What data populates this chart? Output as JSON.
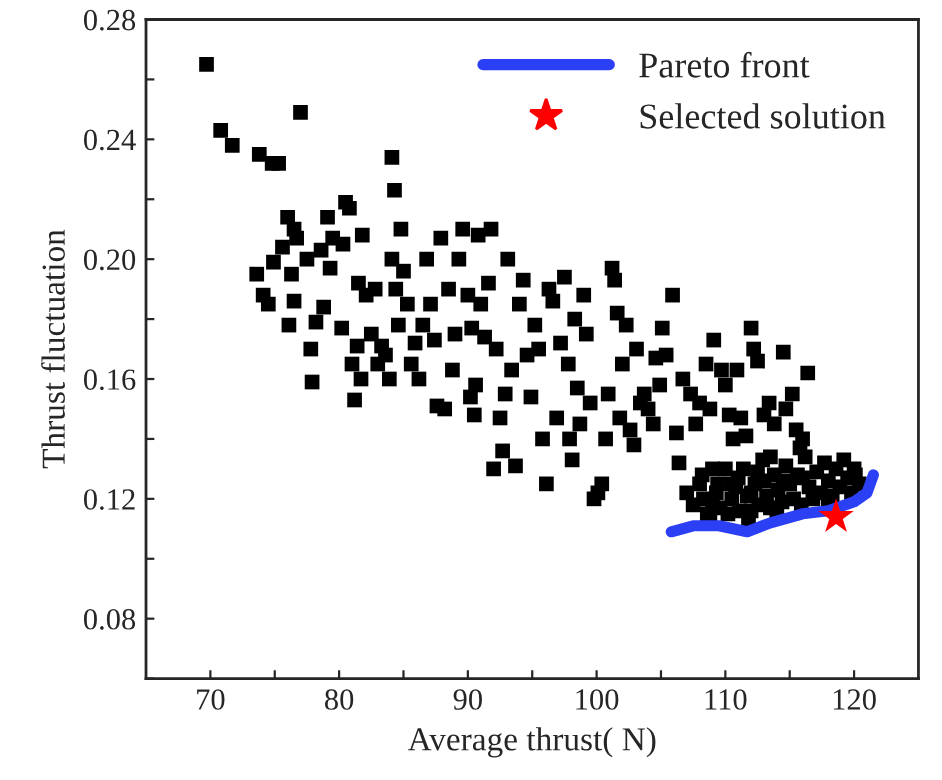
{
  "chart_data": {
    "type": "scatter",
    "xlabel": "Average thrust( N)",
    "ylabel": "Thrust fluctuation",
    "xlim": [
      65,
      125
    ],
    "ylim": [
      0.06,
      0.28
    ],
    "xticks": [
      70,
      {
        "value": 75,
        "label": null
      },
      80,
      {
        "value": 85,
        "label": null
      },
      90,
      {
        "value": 95,
        "label": null
      },
      100,
      {
        "value": 105,
        "label": null
      },
      110,
      {
        "value": 115,
        "label": null
      },
      120
    ],
    "yticks": [
      {
        "value": 0.06,
        "label": null
      },
      {
        "value": 0.08,
        "label": "0.08"
      },
      {
        "value": 0.1,
        "label": null
      },
      {
        "value": 0.12,
        "label": "0.12"
      },
      {
        "value": 0.14,
        "label": null
      },
      {
        "value": 0.16,
        "label": "0.16"
      },
      {
        "value": 0.18,
        "label": null
      },
      {
        "value": 0.2,
        "label": "0.20"
      },
      {
        "value": 0.22,
        "label": null
      },
      {
        "value": 0.24,
        "label": "0.24"
      },
      {
        "value": 0.26,
        "label": null
      },
      {
        "value": 0.28,
        "label": "0.28"
      }
    ],
    "grid": false,
    "legend": "top right",
    "series": [
      {
        "marker": "square",
        "color": "#000000",
        "x": [
          69.7,
          70.8,
          71.7,
          73.8,
          74.8,
          75.3,
          77,
          84.1,
          84.3,
          73.6,
          74.1,
          74.5,
          74.9,
          75.6,
          76,
          76.3,
          76.5,
          76.7,
          76.1,
          76.5,
          77.5,
          77.8,
          77.9,
          78.2,
          78.6,
          78.8,
          79.1,
          79.3,
          79.5,
          80.3,
          80.2,
          80.5,
          80.8,
          81,
          81.2,
          81.4,
          81.7,
          81.5,
          81.8,
          82.1,
          82.5,
          82.8,
          83,
          83.3,
          83.6,
          83.9,
          84.1,
          84.4,
          84.6,
          84.8,
          85,
          85.3,
          85.6,
          85.9,
          86.2,
          86.5,
          86.8,
          87.1,
          87.4,
          87.6,
          87.9,
          88.2,
          88.5,
          88.8,
          89,
          89.3,
          89.6,
          90,
          90.3,
          90.2,
          90.5,
          90.6,
          90.8,
          91,
          91.3,
          91.6,
          91.8,
          92,
          92.2,
          92.5,
          92.7,
          92.9,
          93.1,
          93.4,
          93.7,
          94,
          94.3,
          94.6,
          94.9,
          95.2,
          95.5,
          95.8,
          96.1,
          96.3,
          96.6,
          96.9,
          97.2,
          97.5,
          97.8,
          97.9,
          98.1,
          98.3,
          98.5,
          98.7,
          99,
          99.2,
          99.5,
          99.8,
          100.1,
          100.4,
          100.7,
          100.9,
          101.2,
          101.4,
          101.6,
          101.8,
          102,
          102.3,
          102.6,
          102.9,
          103.1,
          103.4,
          103.7,
          104,
          104.4,
          104.6,
          104.9,
          105.1,
          105.4,
          105.9,
          106.2,
          106.4,
          106.7,
          107,
          107.3,
          107.7,
          108,
          108.2,
          108.5,
          108.8,
          109.1,
          109.4,
          109.7,
          110,
          110.3,
          110.6,
          110.9,
          111.2,
          111.6,
          112,
          112.2,
          112.5,
          113,
          113.4,
          113.8,
          114.5,
          114.7,
          115.2,
          115.5,
          116,
          116.4,
          115.8,
          107.5,
          108,
          108.3,
          108.6,
          109,
          109.3,
          109.6,
          110.2,
          110.5,
          110.8,
          111.1,
          111.4,
          111.7,
          112,
          112.3,
          112.6,
          112.9,
          113.2,
          113.5,
          113.8,
          114.1,
          114.4,
          114.7,
          115,
          115.3,
          115.6,
          115.9,
          116.2,
          116.5,
          116.8,
          117.1,
          117.4,
          117.7,
          118,
          118.3,
          118.6,
          118.9,
          119.2,
          119.5,
          119.8,
          120.1,
          120.4,
          110,
          111,
          112.5,
          113.5,
          114,
          120,
          112,
          113,
          114.5,
          116,
          118,
          110.5,
          109,
          108.8,
          111.8
        ],
        "values": [
          0.265,
          0.243,
          0.238,
          0.235,
          0.232,
          0.232,
          0.249,
          0.234,
          0.223,
          0.195,
          0.188,
          0.185,
          0.199,
          0.204,
          0.214,
          0.195,
          0.21,
          0.207,
          0.178,
          0.186,
          0.2,
          0.17,
          0.159,
          0.179,
          0.203,
          0.184,
          0.214,
          0.197,
          0.207,
          0.205,
          0.177,
          0.219,
          0.217,
          0.165,
          0.153,
          0.171,
          0.16,
          0.192,
          0.208,
          0.188,
          0.175,
          0.19,
          0.165,
          0.171,
          0.168,
          0.16,
          0.2,
          0.19,
          0.178,
          0.21,
          0.196,
          0.185,
          0.165,
          0.172,
          0.16,
          0.178,
          0.2,
          0.185,
          0.173,
          0.151,
          0.207,
          0.15,
          0.19,
          0.163,
          0.175,
          0.2,
          0.21,
          0.188,
          0.177,
          0.154,
          0.148,
          0.158,
          0.208,
          0.185,
          0.174,
          0.192,
          0.21,
          0.13,
          0.17,
          0.147,
          0.136,
          0.155,
          0.2,
          0.163,
          0.131,
          0.185,
          0.193,
          0.168,
          0.154,
          0.178,
          0.17,
          0.14,
          0.125,
          0.19,
          0.186,
          0.147,
          0.172,
          0.194,
          0.165,
          0.14,
          0.133,
          0.18,
          0.157,
          0.145,
          0.188,
          0.175,
          0.152,
          0.12,
          0.122,
          0.125,
          0.14,
          0.155,
          0.197,
          0.193,
          0.182,
          0.147,
          0.165,
          0.178,
          0.143,
          0.138,
          0.17,
          0.152,
          0.155,
          0.15,
          0.145,
          0.167,
          0.158,
          0.177,
          0.168,
          0.188,
          0.142,
          0.132,
          0.16,
          0.122,
          0.155,
          0.145,
          0.152,
          0.128,
          0.165,
          0.15,
          0.173,
          0.125,
          0.163,
          0.158,
          0.148,
          0.14,
          0.163,
          0.147,
          0.141,
          0.177,
          0.17,
          0.166,
          0.148,
          0.152,
          0.145,
          0.169,
          0.15,
          0.155,
          0.143,
          0.14,
          0.162,
          0.137,
          0.118,
          0.125,
          0.12,
          0.115,
          0.118,
          0.122,
          0.117,
          0.115,
          0.12,
          0.124,
          0.116,
          0.13,
          0.121,
          0.116,
          0.125,
          0.118,
          0.133,
          0.121,
          0.117,
          0.128,
          0.123,
          0.119,
          0.131,
          0.125,
          0.12,
          0.128,
          0.118,
          0.134,
          0.124,
          0.12,
          0.129,
          0.122,
          0.132,
          0.126,
          0.121,
          0.13,
          0.124,
          0.133,
          0.127,
          0.122,
          0.128,
          0.125,
          0.13,
          0.127,
          0.129,
          0.134,
          0.115,
          0.13,
          0.122,
          0.126,
          0.126,
          0.127,
          0.119,
          0.125,
          0.13,
          0.113,
          0.112
        ]
      },
      {
        "type": "line",
        "name": "Pareto front",
        "color": "#2b3ff5",
        "line_style": "solid",
        "marker": "none",
        "x": [
          105.8,
          107.5,
          109.5,
          111.7,
          113.5,
          116,
          118,
          120,
          121,
          121.5
        ],
        "values": [
          0.109,
          0.111,
          0.111,
          0.109,
          0.112,
          0.115,
          0.116,
          0.119,
          0.122,
          0.128
        ]
      },
      {
        "type": "scatter",
        "name": "Selected solution",
        "marker": "star",
        "color": "#ff0000",
        "x": [
          118.6
        ],
        "values": [
          0.114
        ]
      }
    ]
  }
}
